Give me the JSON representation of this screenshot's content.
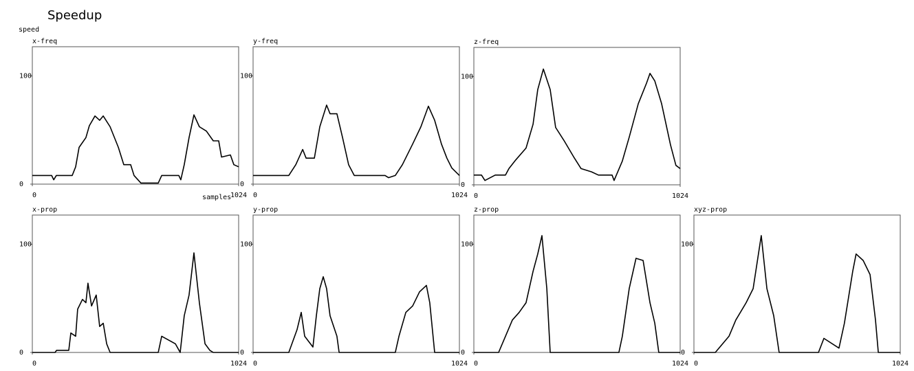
{
  "chart_data": [
    {
      "type": "line",
      "suptitle": "Speedup",
      "y_label": "speed",
      "x_label": "samples",
      "title": "x-freq",
      "color": "#000000",
      "x": [
        0,
        96,
        106,
        119,
        198,
        215,
        232,
        266,
        283,
        311,
        334,
        352,
        386,
        427,
        454,
        488,
        505,
        539,
        625,
        642,
        727,
        737,
        754,
        778,
        802,
        829,
        864,
        898,
        925,
        939,
        983,
        1000,
        1024
      ],
      "values": [
        8,
        8,
        4,
        8,
        8,
        16,
        34,
        43,
        54,
        63,
        59,
        63,
        53,
        34,
        18,
        18,
        8,
        1,
        1,
        8,
        8,
        4,
        18,
        43,
        64,
        53,
        49,
        40,
        40,
        25,
        27,
        18,
        16
      ],
      "xlim": [
        0,
        1024
      ],
      "ylim": [
        0,
        127
      ],
      "xticks": [
        0,
        1024
      ],
      "yticks": [
        0,
        100
      ]
    },
    {
      "type": "line",
      "title": "y-freq",
      "color": "#000000",
      "x": [
        0,
        177,
        212,
        246,
        263,
        304,
        331,
        365,
        382,
        416,
        444,
        474,
        502,
        655,
        672,
        706,
        741,
        792,
        833,
        870,
        901,
        935,
        962,
        986,
        1024
      ],
      "values": [
        8,
        8,
        18,
        32,
        24,
        24,
        53,
        73,
        65,
        65,
        43,
        18,
        8,
        8,
        6,
        8,
        18,
        37,
        53,
        72,
        59,
        37,
        24,
        15,
        8
      ],
      "xlim": [
        0,
        1024
      ],
      "ylim": [
        0,
        127
      ],
      "xticks": [
        0,
        1024
      ],
      "yticks": [
        0,
        100
      ]
    },
    {
      "type": "line",
      "title": "z-freq",
      "color": "#000000",
      "x": [
        0,
        38,
        55,
        106,
        157,
        174,
        208,
        259,
        294,
        317,
        345,
        379,
        406,
        447,
        498,
        532,
        584,
        618,
        686,
        696,
        737,
        771,
        816,
        857,
        874,
        898,
        932,
        976,
        1003,
        1024
      ],
      "values": [
        9,
        9,
        4,
        9,
        9,
        15,
        23,
        34,
        56,
        88,
        107,
        88,
        53,
        41,
        25,
        15,
        12,
        9,
        9,
        4,
        22,
        44,
        75,
        94,
        103,
        96,
        75,
        37,
        18,
        15
      ],
      "xlim": [
        0,
        1024
      ],
      "ylim": [
        0,
        127
      ],
      "xticks": [
        0,
        1024
      ],
      "yticks": [
        0,
        100
      ]
    },
    {
      "type": "line",
      "title": "x-prop",
      "color": "#000000",
      "x": [
        0,
        113,
        120,
        181,
        191,
        215,
        225,
        249,
        266,
        276,
        294,
        317,
        334,
        352,
        369,
        386,
        625,
        642,
        710,
        734,
        754,
        778,
        802,
        829,
        857,
        881,
        898,
        1024
      ],
      "values": [
        0,
        0,
        2,
        2,
        18,
        15,
        40,
        49,
        46,
        64,
        43,
        53,
        24,
        27,
        8,
        0,
        0,
        15,
        8,
        0,
        34,
        53,
        92,
        46,
        8,
        2,
        0,
        0
      ],
      "xlim": [
        0,
        1024
      ],
      "ylim": [
        0,
        127
      ],
      "xticks": [
        0,
        1024
      ],
      "yticks": [
        0,
        100
      ]
    },
    {
      "type": "line",
      "title": "y-prop",
      "color": "#000000",
      "x": [
        0,
        177,
        218,
        239,
        256,
        297,
        314,
        331,
        348,
        365,
        382,
        416,
        427,
        706,
        724,
        758,
        792,
        826,
        860,
        877,
        901,
        1024
      ],
      "values": [
        0,
        0,
        21,
        37,
        15,
        5,
        34,
        59,
        70,
        59,
        34,
        15,
        0,
        0,
        15,
        37,
        43,
        56,
        62,
        46,
        0,
        0
      ],
      "xlim": [
        0,
        1024
      ],
      "ylim": [
        0,
        127
      ],
      "xticks": [
        0,
        1024
      ],
      "yticks": [
        0,
        100
      ]
    },
    {
      "type": "line",
      "title": "z-prop",
      "color": "#000000",
      "x": [
        0,
        123,
        157,
        191,
        225,
        259,
        294,
        317,
        338,
        362,
        379,
        720,
        737,
        771,
        805,
        840,
        874,
        898,
        918,
        1024
      ],
      "values": [
        0,
        0,
        15,
        30,
        37,
        46,
        75,
        91,
        108,
        59,
        0,
        0,
        15,
        59,
        87,
        85,
        46,
        27,
        0,
        0
      ],
      "xlim": [
        0,
        1024
      ],
      "ylim": [
        0,
        127
      ],
      "xticks": [
        0,
        1024
      ],
      "yticks": [
        0,
        100
      ]
    },
    {
      "type": "line",
      "title": "xyz-prop",
      "color": "#000000",
      "x": [
        0,
        106,
        174,
        208,
        259,
        294,
        334,
        362,
        396,
        423,
        618,
        645,
        720,
        747,
        788,
        805,
        840,
        874,
        901,
        915,
        1024
      ],
      "values": [
        0,
        0,
        15,
        30,
        46,
        59,
        108,
        59,
        34,
        0,
        0,
        13,
        4,
        27,
        75,
        91,
        85,
        72,
        30,
        0,
        0
      ],
      "xlim": [
        0,
        1024
      ],
      "ylim": [
        0,
        127
      ],
      "xticks": [
        0,
        1024
      ],
      "yticks": [
        0,
        100
      ]
    }
  ]
}
